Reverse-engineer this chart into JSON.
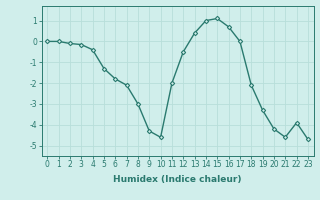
{
  "x": [
    0,
    1,
    2,
    3,
    4,
    5,
    6,
    7,
    8,
    9,
    10,
    11,
    12,
    13,
    14,
    15,
    16,
    17,
    18,
    19,
    20,
    21,
    22,
    23
  ],
  "y": [
    0,
    0,
    -0.1,
    -0.15,
    -0.4,
    -1.3,
    -1.8,
    -2.1,
    -3.0,
    -4.3,
    -4.6,
    -2.0,
    -0.5,
    0.4,
    1.0,
    1.1,
    0.7,
    0.0,
    -2.1,
    -3.3,
    -4.2,
    -4.6,
    -3.9,
    -4.7
  ],
  "line_color": "#2a7a6f",
  "marker": "D",
  "marker_size": 2.2,
  "bg_color": "#d0eeeb",
  "grid_color": "#b8deda",
  "xlabel": "Humidex (Indice chaleur)",
  "xlim": [
    -0.5,
    23.5
  ],
  "ylim": [
    -5.5,
    1.7
  ],
  "yticks": [
    1,
    0,
    -1,
    -2,
    -3,
    -4,
    -5
  ],
  "xtick_labels": [
    "0",
    "1",
    "2",
    "3",
    "4",
    "5",
    "6",
    "7",
    "8",
    "9",
    "10",
    "11",
    "12",
    "13",
    "14",
    "15",
    "16",
    "17",
    "18",
    "19",
    "20",
    "21",
    "22",
    "23"
  ],
  "tick_color": "#2a7a6f",
  "label_fontsize": 6.5,
  "tick_fontsize": 5.5,
  "spine_color": "#2a7a6f"
}
